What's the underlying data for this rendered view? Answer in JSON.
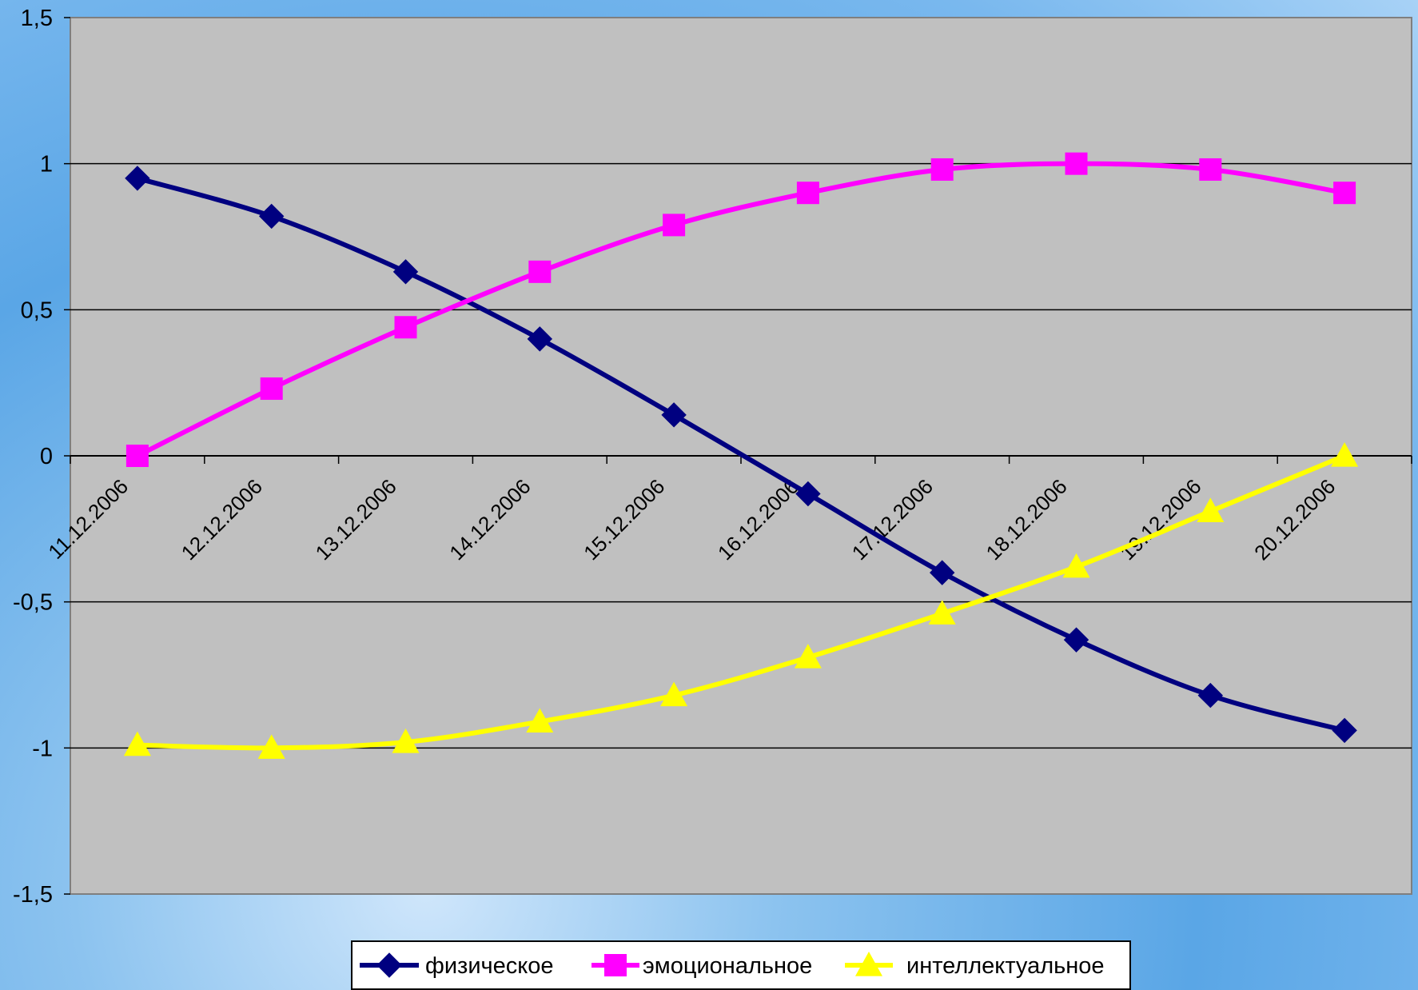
{
  "chart_data": {
    "type": "line",
    "categories": [
      "11.12.2006",
      "12.12.2006",
      "13.12.2006",
      "14.12.2006",
      "15.12.2006",
      "16.12.2006",
      "17.12.2006",
      "18.12.2006",
      "19.12.2006",
      "20.12.2006"
    ],
    "series": [
      {
        "name": "физическое",
        "values": [
          0.95,
          0.82,
          0.63,
          0.4,
          0.14,
          -0.13,
          -0.4,
          -0.63,
          -0.82,
          -0.94
        ],
        "color": "#000080",
        "marker": "diamond"
      },
      {
        "name": "эмоциональное",
        "values": [
          0.0,
          0.23,
          0.44,
          0.63,
          0.79,
          0.9,
          0.98,
          1.0,
          0.98,
          0.9
        ],
        "color": "#ff00ff",
        "marker": "square"
      },
      {
        "name": "интеллектуальное",
        "values": [
          -0.99,
          -1.0,
          -0.98,
          -0.91,
          -0.82,
          -0.69,
          -0.54,
          -0.38,
          -0.19,
          0.0
        ],
        "color": "#ffff00",
        "marker": "triangle"
      }
    ],
    "ylim": [
      -1.5,
      1.5
    ],
    "yticks": [
      "1,5",
      "1",
      "0,5",
      "0",
      "-0,5",
      "-1",
      "-1,5"
    ],
    "ytick_values": [
      1.5,
      1,
      0.5,
      0,
      -0.5,
      -1,
      -1.5
    ],
    "grid": true,
    "legend": "bottom",
    "plot_background": "#c0c0c0"
  }
}
